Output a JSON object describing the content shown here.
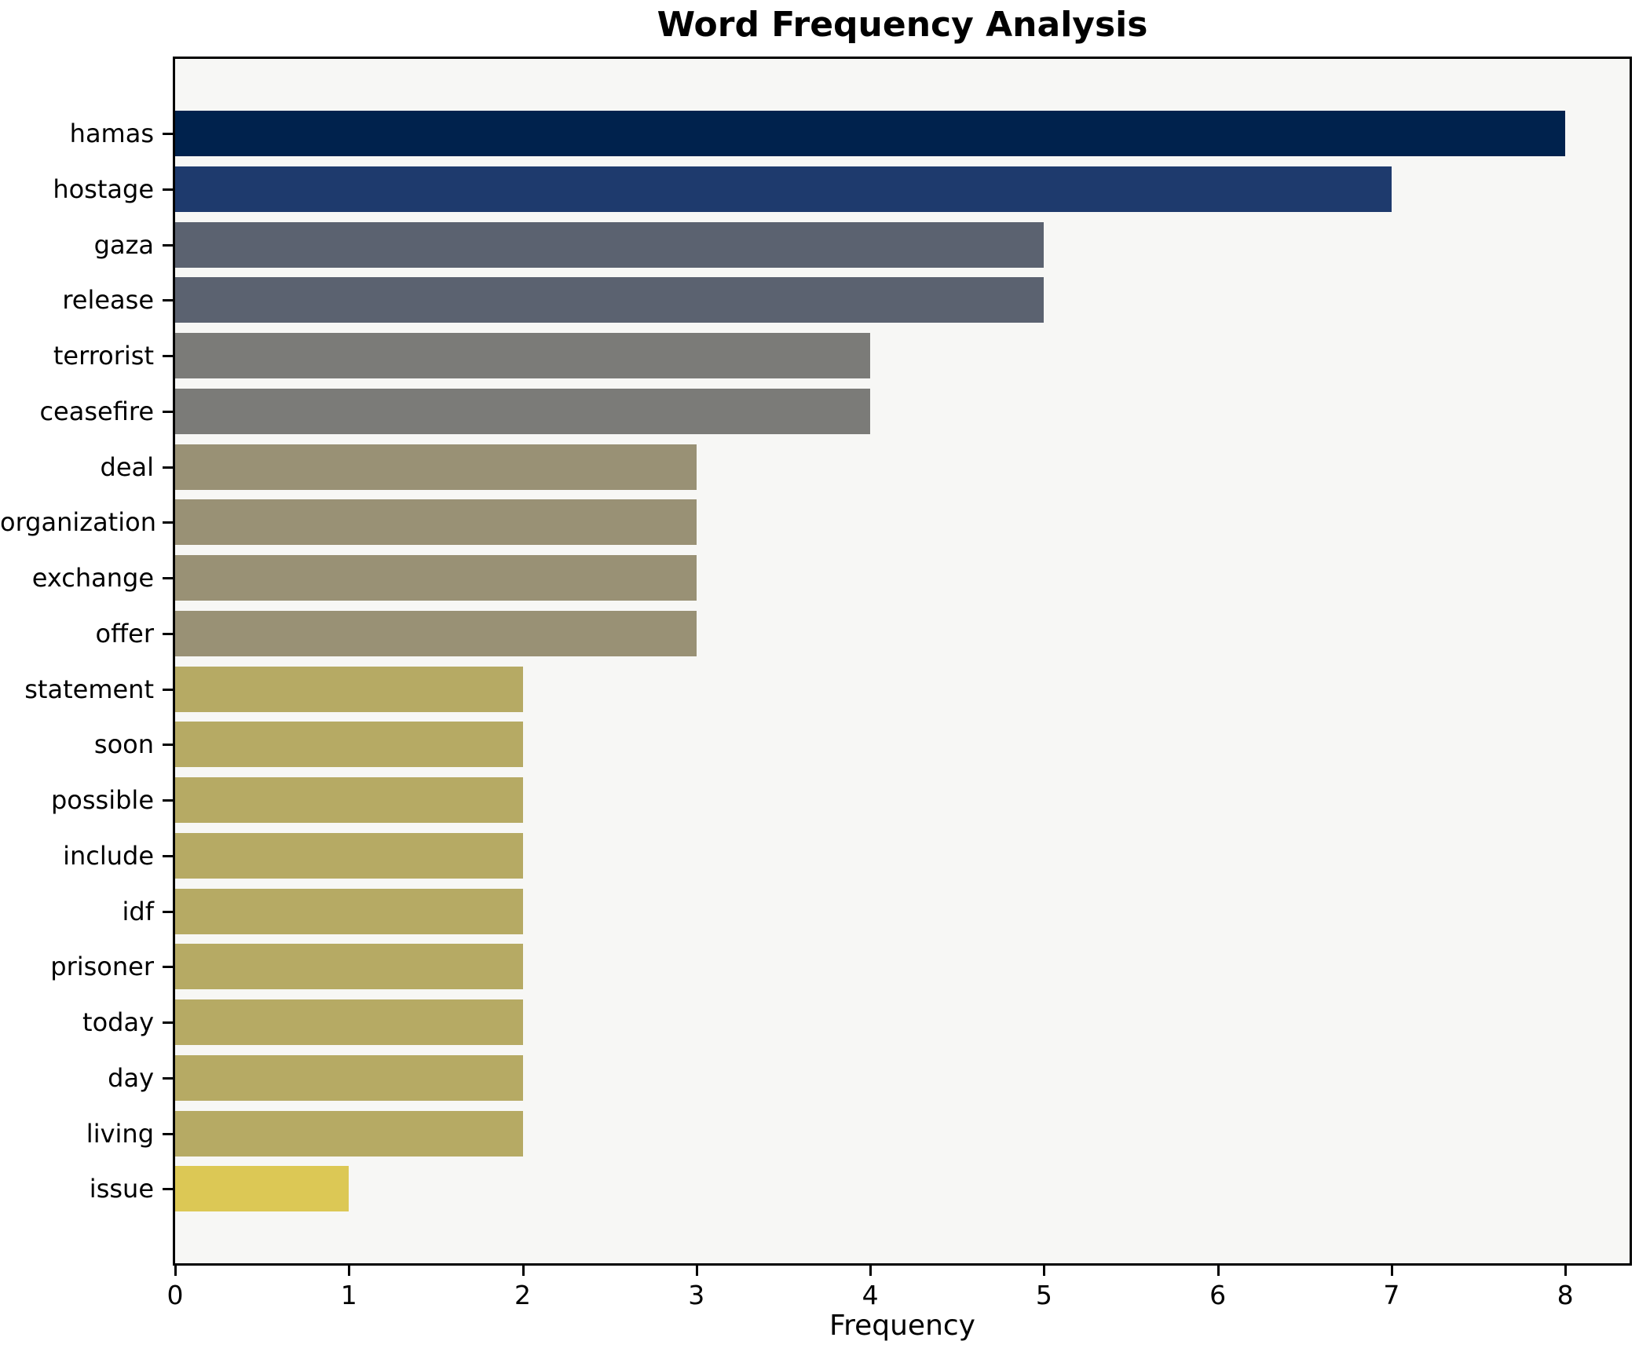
{
  "title": "Word Frequency Analysis",
  "chart_data": {
    "type": "bar",
    "orientation": "horizontal",
    "title": "Word Frequency Analysis",
    "xlabel": "Frequency",
    "ylabel": "",
    "xlim": [
      0,
      8.37
    ],
    "x_ticks": [
      0,
      1,
      2,
      3,
      4,
      5,
      6,
      7,
      8
    ],
    "grid": false,
    "legend": false,
    "categories": [
      "hamas",
      "hostage",
      "gaza",
      "release",
      "terrorist",
      "ceasefire",
      "deal",
      "organization",
      "exchange",
      "offer",
      "statement",
      "soon",
      "possible",
      "include",
      "idf",
      "prisoner",
      "today",
      "day",
      "living",
      "issue"
    ],
    "values": [
      8,
      7,
      5,
      5,
      4,
      4,
      3,
      3,
      3,
      3,
      2,
      2,
      2,
      2,
      2,
      2,
      2,
      2,
      2,
      1
    ],
    "bar_colors": [
      "#00224d",
      "#1e3a6d",
      "#5b6270",
      "#5b6270",
      "#7b7b78",
      "#7b7b78",
      "#999175",
      "#999175",
      "#999175",
      "#999175",
      "#b6aa64",
      "#b6aa64",
      "#b6aa64",
      "#b6aa64",
      "#b6aa64",
      "#b6aa64",
      "#b6aa64",
      "#b6aa64",
      "#b6aa64",
      "#dcc855"
    ],
    "colors": {
      "figure_background": "#ffffff",
      "plot_background": "#f7f7f5",
      "spine": "#000000",
      "text": "#000000"
    }
  }
}
